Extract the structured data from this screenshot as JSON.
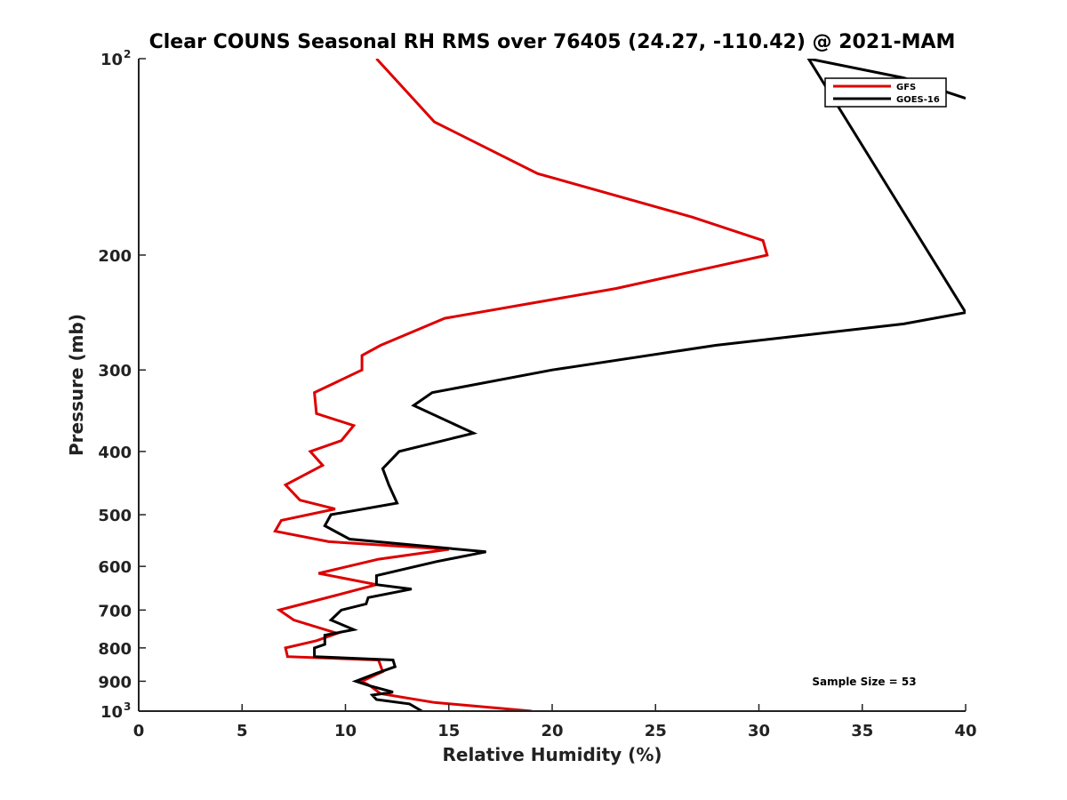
{
  "chart_data": {
    "type": "line",
    "title": "Clear COUNS Seasonal RH RMS over 76405 (24.27, -110.42) @ 2021-MAM",
    "xlabel": "Relative Humidity (%)",
    "ylabel": "Pressure (mb)",
    "xlim": [
      0,
      40
    ],
    "ylim": [
      100,
      1000
    ],
    "yscale": "log",
    "y_reversed": true,
    "grid": false,
    "legend_position": "top-right",
    "x_ticks": [
      {
        "value": 0,
        "label": "0"
      },
      {
        "value": 5,
        "label": "5"
      },
      {
        "value": 10,
        "label": "10"
      },
      {
        "value": 15,
        "label": "15"
      },
      {
        "value": 20,
        "label": "20"
      },
      {
        "value": 25,
        "label": "25"
      },
      {
        "value": 30,
        "label": "30"
      },
      {
        "value": 35,
        "label": "35"
      },
      {
        "value": 40,
        "label": "40"
      }
    ],
    "y_ticks": [
      {
        "value": 100,
        "base": "10",
        "exp": "2"
      },
      {
        "value": 200,
        "label": "200"
      },
      {
        "value": 300,
        "label": "300"
      },
      {
        "value": 400,
        "label": "400"
      },
      {
        "value": 500,
        "label": "500"
      },
      {
        "value": 600,
        "label": "600"
      },
      {
        "value": 700,
        "label": "700"
      },
      {
        "value": 800,
        "label": "800"
      },
      {
        "value": 900,
        "label": "900"
      },
      {
        "value": 1000,
        "base": "10",
        "exp": "3"
      }
    ],
    "series": [
      {
        "name": "GFS",
        "color": "#dd0000",
        "points": [
          [
            11.5,
            100
          ],
          [
            14.3,
            125
          ],
          [
            19.3,
            150
          ],
          [
            26.8,
            175
          ],
          [
            30.2,
            190
          ],
          [
            30.4,
            200
          ],
          [
            23.1,
            225
          ],
          [
            14.8,
            250
          ],
          [
            11.7,
            275
          ],
          [
            10.8,
            285
          ],
          [
            10.8,
            300
          ],
          [
            8.5,
            325
          ],
          [
            8.6,
            350
          ],
          [
            10.4,
            365
          ],
          [
            9.8,
            385
          ],
          [
            8.3,
            400
          ],
          [
            8.9,
            420
          ],
          [
            7.1,
            450
          ],
          [
            7.8,
            475
          ],
          [
            9.5,
            490
          ],
          [
            6.9,
            510
          ],
          [
            6.6,
            530
          ],
          [
            9.2,
            550
          ],
          [
            15.0,
            565
          ],
          [
            11.6,
            585
          ],
          [
            8.7,
            615
          ],
          [
            11.5,
            640
          ],
          [
            9.5,
            665
          ],
          [
            6.8,
            700
          ],
          [
            7.5,
            725
          ],
          [
            9.6,
            760
          ],
          [
            8.6,
            780
          ],
          [
            7.1,
            800
          ],
          [
            7.2,
            825
          ],
          [
            11.6,
            835
          ],
          [
            11.8,
            870
          ],
          [
            10.8,
            900
          ],
          [
            11.2,
            915
          ],
          [
            11.7,
            940
          ],
          [
            14.3,
            970
          ],
          [
            19.0,
            1000
          ]
        ]
      },
      {
        "name": "GOES-16",
        "color": "#000000",
        "points": [
          [
            40.0,
            115
          ],
          [
            37.0,
            107
          ],
          [
            32.4,
            100
          ],
          [
            40.0,
            245
          ],
          [
            37.0,
            255
          ],
          [
            27.9,
            275
          ],
          [
            20.0,
            300
          ],
          [
            14.2,
            325
          ],
          [
            13.3,
            340
          ],
          [
            16.2,
            375
          ],
          [
            12.6,
            400
          ],
          [
            11.8,
            425
          ],
          [
            12.1,
            450
          ],
          [
            12.5,
            480
          ],
          [
            9.3,
            500
          ],
          [
            9.0,
            520
          ],
          [
            10.2,
            545
          ],
          [
            16.8,
            570
          ],
          [
            14.4,
            590
          ],
          [
            11.5,
            620
          ],
          [
            11.5,
            640
          ],
          [
            13.2,
            650
          ],
          [
            11.1,
            670
          ],
          [
            11.0,
            685
          ],
          [
            9.8,
            700
          ],
          [
            9.3,
            725
          ],
          [
            10.4,
            750
          ],
          [
            9.0,
            765
          ],
          [
            9.0,
            790
          ],
          [
            8.5,
            800
          ],
          [
            8.5,
            825
          ],
          [
            12.3,
            835
          ],
          [
            12.4,
            855
          ],
          [
            11.5,
            875
          ],
          [
            10.5,
            900
          ],
          [
            11.2,
            915
          ],
          [
            12.3,
            935
          ],
          [
            11.3,
            945
          ],
          [
            11.5,
            960
          ],
          [
            13.1,
            975
          ],
          [
            13.7,
            1000
          ]
        ]
      }
    ],
    "annotations": [
      "Sample Size = 53"
    ]
  }
}
